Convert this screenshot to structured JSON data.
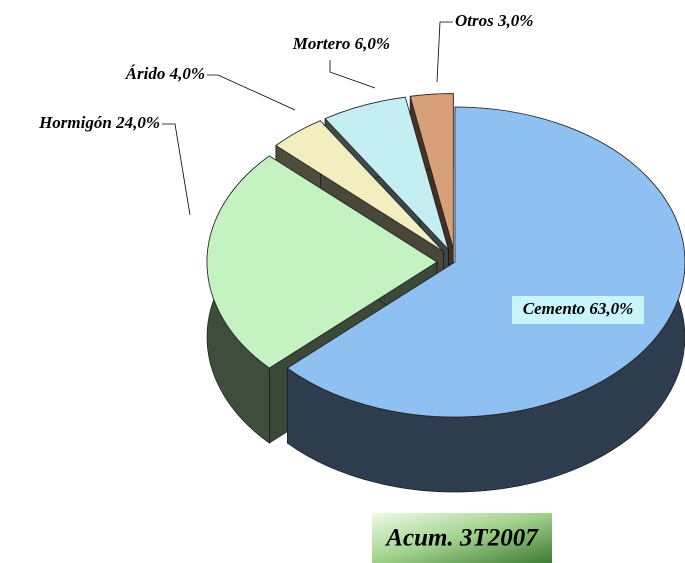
{
  "chart_data": {
    "type": "pie",
    "title": "Acum. 3T2007",
    "categories": [
      "Cemento",
      "Hormigón",
      "Árido",
      "Mortero",
      "Otros"
    ],
    "values": [
      63,
      24,
      4,
      6,
      3
    ],
    "value_labels": [
      "63,0%",
      "24,0%",
      "4,0%",
      "6,0%",
      "3,0%"
    ],
    "colors": [
      "#8fc0f2",
      "#c4f2c0",
      "#f2eec0",
      "#c4eef2",
      "#d8a078"
    ]
  }
}
